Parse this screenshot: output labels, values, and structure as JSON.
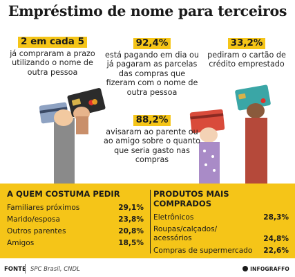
{
  "title": "Empréstimo de nome para terceiros",
  "stats": [
    {
      "highlight": "2 em cada 5",
      "text": "já compraram a prazo utilizando o nome de outra pessoa"
    },
    {
      "highlight": "92,4%",
      "text": "está pagando em dia ou já pagaram as parcelas das compras que fizeram com o nome de outra pessoa"
    },
    {
      "highlight": "33,2%",
      "text": "pediram o cartão de crédito emprestado"
    },
    {
      "highlight": "88,2%",
      "text": "avisaram ao parente ou ao amigo sobre o quanto que seria gasto nas compras"
    }
  ],
  "who_asks": {
    "heading": "A QUEM COSTUMA PEDIR",
    "rows": [
      {
        "label": "Familiares próximos",
        "value": "29,1%"
      },
      {
        "label": "Marido/esposa",
        "value": "23,8%"
      },
      {
        "label": "Outros parentes",
        "value": "20,8%"
      },
      {
        "label": "Amigos",
        "value": "18,5%"
      }
    ]
  },
  "products": {
    "heading": "PRODUTOS MAIS COMPRADOS",
    "rows": [
      {
        "label": "Eletrônicos",
        "value": "28,3%"
      },
      {
        "label": "Roupas/calçados/ acessórios",
        "value": "24,8%"
      },
      {
        "label": "Compras de supermercado",
        "value": "22,6%"
      }
    ]
  },
  "footer": {
    "source_label": "FONTE",
    "source_text": "SPC Brasil, CNDL",
    "brand": "INFOGRAFFO"
  },
  "colors": {
    "accent_yellow": "#f5c518",
    "text_dark": "#1a1a1a"
  },
  "illustration_icons": [
    "hand-holding-card-icon",
    "credit-card-icon"
  ]
}
